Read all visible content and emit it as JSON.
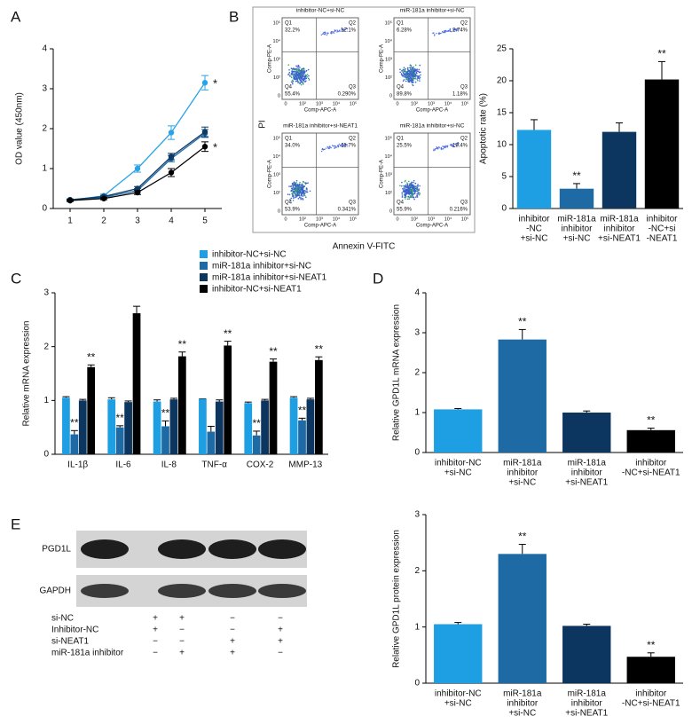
{
  "panels": [
    "A",
    "B",
    "C",
    "D",
    "E"
  ],
  "chart_data": [
    {
      "type": "line",
      "y_label": "OD value (450nm)",
      "x": [
        1,
        2,
        3,
        4,
        5
      ],
      "xlim": [
        0.5,
        5.5
      ],
      "xticks": [
        1,
        2,
        3,
        4,
        5
      ],
      "ylim": [
        0,
        4
      ],
      "yticks": [
        0,
        1,
        2,
        3,
        4
      ],
      "series": [
        {
          "color": "#2aa3e6",
          "values": [
            0.2,
            0.32,
            1.0,
            1.9,
            3.15
          ],
          "errors": [
            0.03,
            0.04,
            0.09,
            0.17,
            0.18
          ],
          "significance": [
            null,
            null,
            null,
            null,
            "*"
          ]
        },
        {
          "color": "#1f6aa8",
          "values": [
            0.2,
            0.28,
            0.45,
            1.25,
            1.88
          ],
          "errors": [
            0.02,
            0.03,
            0.05,
            0.08,
            0.1
          ],
          "significance": [
            null,
            null,
            null,
            null,
            null
          ]
        },
        {
          "color": "#0e3a63",
          "values": [
            0.22,
            0.3,
            0.5,
            1.3,
            1.92
          ],
          "errors": [
            0.02,
            0.03,
            0.05,
            0.08,
            0.12
          ],
          "significance": [
            null,
            null,
            null,
            null,
            null
          ]
        },
        {
          "color": "#000000",
          "values": [
            0.2,
            0.25,
            0.4,
            0.9,
            1.55
          ],
          "errors": [
            0.02,
            0.03,
            0.05,
            0.1,
            0.12
          ],
          "significance": [
            null,
            null,
            null,
            null,
            "*"
          ]
        }
      ]
    },
    {
      "type": "bar",
      "y_label": "Apoptotic rate (%)",
      "categories": [
        [
          "inhibitor",
          "-NC",
          "+si-NC"
        ],
        [
          "miR-181a",
          "inhibitor",
          "+si-NC"
        ],
        [
          "miR-181a",
          "inhibitor",
          "+si-NEAT1"
        ],
        [
          "inhibitor",
          "-NC+si",
          "-NEAT1"
        ]
      ],
      "values": [
        12.3,
        3.1,
        12.0,
        20.2
      ],
      "errors": [
        1.6,
        0.8,
        1.4,
        2.8
      ],
      "significance": [
        null,
        "**",
        null,
        "**"
      ],
      "colors": [
        "#1e9fe3",
        "#1d6aa5",
        "#0c365f",
        "#000000"
      ],
      "ylim": [
        0,
        25
      ],
      "yticks": [
        0,
        5,
        10,
        15,
        20,
        25
      ]
    },
    {
      "type": "grouped_bar",
      "y_label": "Relative mRNA expression",
      "categories": [
        "IL-1β",
        "IL-6",
        "IL-8",
        "TNF-α",
        "COX-2",
        "MMP-13"
      ],
      "ylim": [
        0,
        3
      ],
      "yticks": [
        0,
        1,
        2,
        3
      ],
      "series": [
        {
          "name": "inhibitor-NC+si-NC",
          "color": "#1e9fe3",
          "values": [
            1.05,
            1.02,
            0.98,
            1.03,
            0.95,
            1.05
          ],
          "errors": [
            0.02,
            0.03,
            0.03,
            0.0,
            0.02,
            0.02
          ],
          "significance": [
            null,
            null,
            null,
            null,
            null,
            null
          ]
        },
        {
          "name": "miR-181a inhibitor+si-NC",
          "color": "#1d6aa5",
          "values": [
            0.37,
            0.5,
            0.52,
            0.42,
            0.35,
            0.63
          ],
          "errors": [
            0.07,
            0.03,
            0.1,
            0.1,
            0.08,
            0.04
          ],
          "significance": [
            "**",
            "**",
            "**",
            null,
            "**",
            "**"
          ]
        },
        {
          "name": "miR-181a inhibitor+si-NEAT1",
          "color": "#0c365f",
          "values": [
            1.0,
            0.97,
            1.02,
            0.98,
            1.0,
            1.02
          ],
          "errors": [
            0.02,
            0.02,
            0.02,
            0.03,
            0.02,
            0.02
          ],
          "significance": [
            null,
            null,
            null,
            null,
            null,
            null
          ]
        },
        {
          "name": "inhibitor-NC+si-NEAT1",
          "color": "#000000",
          "values": [
            1.62,
            2.62,
            1.82,
            2.02,
            1.72,
            1.75
          ],
          "errors": [
            0.04,
            0.13,
            0.08,
            0.08,
            0.05,
            0.06
          ],
          "significance": [
            "**",
            null,
            "**",
            "**",
            "**",
            "**"
          ]
        }
      ]
    },
    {
      "type": "bar",
      "y_label": "Relative GPD1L mRNA expression",
      "categories": [
        [
          "inhibitor-NC",
          "+si-NC"
        ],
        [
          "miR-181a",
          "inhibitor",
          "+si-NC"
        ],
        [
          "miR-181a",
          "inhibitor",
          "+si-NEAT1"
        ],
        [
          "inhibitor",
          "-NC+si-NEAT1"
        ]
      ],
      "values": [
        1.08,
        2.83,
        1.0,
        0.56
      ],
      "errors": [
        0.02,
        0.25,
        0.04,
        0.05
      ],
      "significance": [
        null,
        "**",
        null,
        "**"
      ],
      "colors": [
        "#1e9fe3",
        "#1d6aa5",
        "#0c365f",
        "#000000"
      ],
      "ylim": [
        0,
        4
      ],
      "yticks": [
        0,
        1,
        2,
        3,
        4
      ]
    },
    {
      "type": "bar",
      "y_label": "Relative GPD1L protein expression",
      "categories": [
        [
          "inhibitor-NC",
          "+si-NC"
        ],
        [
          "miR-181a",
          "inhibitor",
          "+si-NC"
        ],
        [
          "miR-181a",
          "inhibitor",
          "+si-NEAT1"
        ],
        [
          "inhibitor",
          "-NC+si-NEAT1"
        ]
      ],
      "values": [
        1.05,
        2.3,
        1.02,
        0.47
      ],
      "errors": [
        0.03,
        0.17,
        0.03,
        0.07
      ],
      "significance": [
        null,
        "**",
        null,
        "**"
      ],
      "colors": [
        "#1e9fe3",
        "#1d6aa5",
        "#0c365f",
        "#000000"
      ],
      "ylim": [
        0,
        3
      ],
      "yticks": [
        0,
        1,
        2,
        3
      ]
    }
  ],
  "flow": {
    "y_label": "PI",
    "x_label": "Annexin V-FITC",
    "axis_x": "Comp-APC-A",
    "axis_y": "Comp-PE-A",
    "ticks": [
      "0",
      "10²",
      "10³",
      "10⁴",
      "10⁵"
    ],
    "quadrant_names": [
      "Q1",
      "Q2",
      "Q3",
      "Q4"
    ],
    "plots": [
      {
        "title": "inhibitor-NC+si-NC",
        "quadrants": [
          "32.2%",
          "12.1%",
          "0.290%",
          "55.4%"
        ]
      },
      {
        "title": "miR-181a inhibitor+si-NC",
        "quadrants": [
          "6.28%",
          "2.74%",
          "1.18%",
          "89.8%"
        ]
      },
      {
        "title": "miR-181a inhibitor+si-NEAT1",
        "quadrants": [
          "34.0%",
          "11.7%",
          "0.341%",
          "53.9%"
        ]
      },
      {
        "title": "miR-181a inhibitor+si-NC",
        "quadrants": [
          "25.5%",
          "18.4%",
          "0.216%",
          "55.9%"
        ]
      }
    ]
  },
  "blot": {
    "rows": [
      "PGD1L",
      "GAPDH"
    ],
    "conditions": [
      {
        "label": "si-NC",
        "lanes": [
          "+",
          "+",
          "−",
          "−"
        ]
      },
      {
        "label": "Inhibitor-NC",
        "lanes": [
          "+",
          "−",
          "−",
          "+"
        ]
      },
      {
        "label": "si-NEAT1",
        "lanes": [
          "−",
          "−",
          "+",
          "+"
        ]
      },
      {
        "label": "miR-181a inhibitor",
        "lanes": [
          "−",
          "+",
          "+",
          "−"
        ]
      }
    ]
  }
}
